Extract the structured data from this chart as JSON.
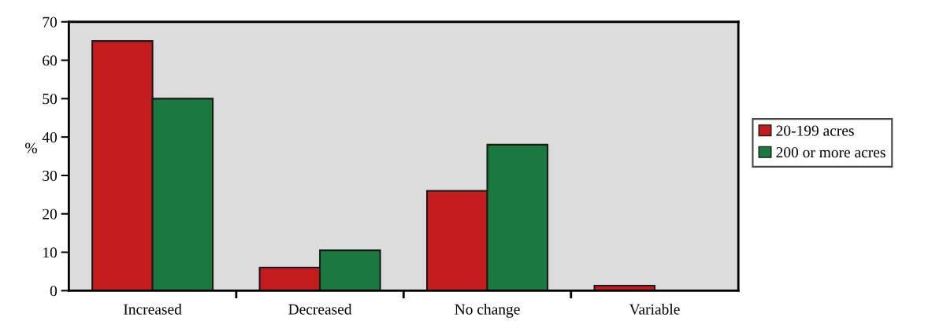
{
  "chart_data": {
    "type": "bar",
    "ylabel": "%",
    "categories": [
      "Increased",
      "Decreased",
      "No change",
      "Variable"
    ],
    "series": [
      {
        "name": "20-199 acres",
        "color": "#c41c1c",
        "values": [
          65,
          6,
          26,
          1.3
        ]
      },
      {
        "name": "200 or more acres",
        "color": "#1a7a3e",
        "values": [
          50,
          10.5,
          38,
          0
        ]
      }
    ],
    "ylim": [
      0,
      70
    ],
    "yticks": [
      0,
      10,
      20,
      30,
      40,
      50,
      60,
      70
    ],
    "grid": false,
    "legend": "right"
  }
}
